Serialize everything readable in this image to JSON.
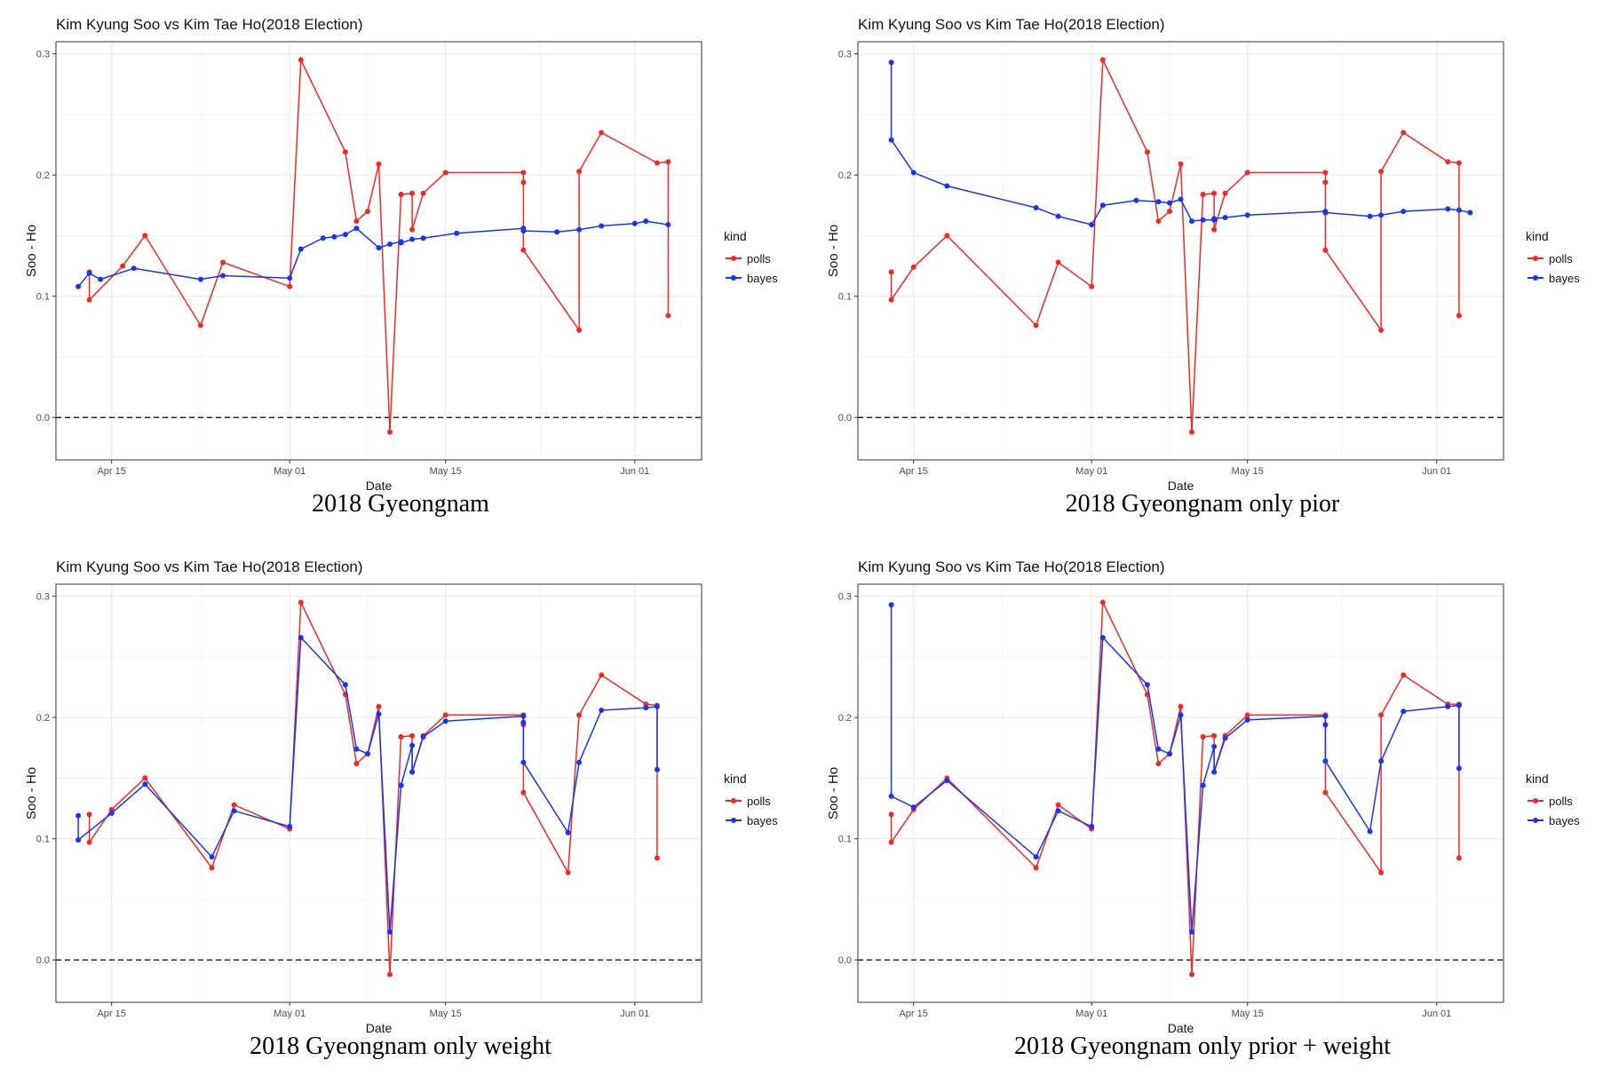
{
  "colors": {
    "polls": "#ee2b22",
    "bayes": "#1635f0",
    "grid": "#ebebeb",
    "zero": "#000000"
  },
  "chart_data": [
    {
      "type": "line",
      "title": "Kim Kyung Soo vs Kim Tae Ho(2018 Election)",
      "caption": "2018 Gyeongnam",
      "xlabel": "Date",
      "ylabel": "Soo - Ho",
      "xlim": [
        "2018-04-10",
        "2018-06-07"
      ],
      "ylim": [
        -0.035,
        0.31
      ],
      "x_ticks": [
        {
          "date": "2018-04-15",
          "label": "Apr 15"
        },
        {
          "date": "2018-05-01",
          "label": "May 01"
        },
        {
          "date": "2018-05-15",
          "label": "May 15"
        },
        {
          "date": "2018-06-01",
          "label": "Jun 01"
        }
      ],
      "y_ticks": [
        0.0,
        0.1,
        0.2,
        0.3
      ],
      "hline": 0,
      "grid": true,
      "legend": {
        "title": "kind",
        "position": "right",
        "entries": [
          "polls",
          "bayes"
        ]
      },
      "series": [
        {
          "name": "polls",
          "x": [
            "2018-04-13",
            "2018-04-13",
            "2018-04-16",
            "2018-04-18",
            "2018-04-23",
            "2018-04-25",
            "2018-05-01",
            "2018-05-02",
            "2018-05-06",
            "2018-05-07",
            "2018-05-08",
            "2018-05-09",
            "2018-05-10",
            "2018-05-11",
            "2018-05-11",
            "2018-05-12",
            "2018-05-12",
            "2018-05-13",
            "2018-05-15",
            "2018-05-22",
            "2018-05-22",
            "2018-05-22",
            "2018-05-27",
            "2018-05-27",
            "2018-05-29",
            "2018-06-03",
            "2018-06-04",
            "2018-06-04"
          ],
          "y": [
            0.12,
            0.097,
            0.125,
            0.15,
            0.076,
            0.128,
            0.108,
            0.295,
            0.219,
            0.162,
            0.17,
            0.209,
            -0.012,
            0.184,
            0.184,
            0.185,
            0.155,
            0.185,
            0.202,
            0.202,
            0.194,
            0.138,
            0.072,
            0.203,
            0.235,
            0.21,
            0.211,
            0.084
          ]
        },
        {
          "name": "bayes",
          "x": [
            "2018-04-12",
            "2018-04-13",
            "2018-04-14",
            "2018-04-17",
            "2018-04-23",
            "2018-04-25",
            "2018-05-01",
            "2018-05-02",
            "2018-05-04",
            "2018-05-05",
            "2018-05-06",
            "2018-05-07",
            "2018-05-09",
            "2018-05-10",
            "2018-05-11",
            "2018-05-11",
            "2018-05-12",
            "2018-05-13",
            "2018-05-16",
            "2018-05-22",
            "2018-05-22",
            "2018-05-25",
            "2018-05-27",
            "2018-05-29",
            "2018-06-01",
            "2018-06-02",
            "2018-06-04"
          ],
          "y": [
            0.108,
            0.119,
            0.114,
            0.123,
            0.114,
            0.117,
            0.115,
            0.139,
            0.148,
            0.149,
            0.151,
            0.156,
            0.14,
            0.143,
            0.145,
            0.144,
            0.147,
            0.148,
            0.152,
            0.156,
            0.154,
            0.153,
            0.155,
            0.158,
            0.16,
            0.162,
            0.159
          ]
        }
      ]
    },
    {
      "type": "line",
      "title": "Kim Kyung Soo vs Kim Tae Ho(2018 Election)",
      "caption": "2018 Gyeongnam only pior",
      "xlabel": "Date",
      "ylabel": "Soo - Ho",
      "xlim": [
        "2018-04-10",
        "2018-06-07"
      ],
      "ylim": [
        -0.035,
        0.31
      ],
      "x_ticks": [
        {
          "date": "2018-04-15",
          "label": "Apr 15"
        },
        {
          "date": "2018-05-01",
          "label": "May 01"
        },
        {
          "date": "2018-05-15",
          "label": "May 15"
        },
        {
          "date": "2018-06-01",
          "label": "Jun 01"
        }
      ],
      "y_ticks": [
        0.0,
        0.1,
        0.2,
        0.3
      ],
      "hline": 0,
      "grid": true,
      "legend": {
        "title": "kind",
        "position": "right",
        "entries": [
          "polls",
          "bayes"
        ]
      },
      "series": [
        {
          "name": "polls",
          "x": [
            "2018-04-13",
            "2018-04-13",
            "2018-04-15",
            "2018-04-18",
            "2018-04-26",
            "2018-04-28",
            "2018-05-01",
            "2018-05-02",
            "2018-05-06",
            "2018-05-07",
            "2018-05-08",
            "2018-05-09",
            "2018-05-10",
            "2018-05-11",
            "2018-05-11",
            "2018-05-12",
            "2018-05-12",
            "2018-05-13",
            "2018-05-15",
            "2018-05-22",
            "2018-05-22",
            "2018-05-22",
            "2018-05-27",
            "2018-05-27",
            "2018-05-29",
            "2018-06-02",
            "2018-06-03",
            "2018-06-03"
          ],
          "y": [
            0.12,
            0.097,
            0.124,
            0.15,
            0.076,
            0.128,
            0.108,
            0.295,
            0.219,
            0.162,
            0.17,
            0.209,
            -0.012,
            0.184,
            0.184,
            0.185,
            0.155,
            0.185,
            0.202,
            0.202,
            0.194,
            0.138,
            0.072,
            0.203,
            0.235,
            0.211,
            0.21,
            0.084
          ]
        },
        {
          "name": "bayes",
          "x": [
            "2018-04-13",
            "2018-04-13",
            "2018-04-15",
            "2018-04-18",
            "2018-04-26",
            "2018-04-28",
            "2018-05-01",
            "2018-05-02",
            "2018-05-05",
            "2018-05-07",
            "2018-05-08",
            "2018-05-09",
            "2018-05-10",
            "2018-05-11",
            "2018-05-12",
            "2018-05-12",
            "2018-05-13",
            "2018-05-15",
            "2018-05-22",
            "2018-05-22",
            "2018-05-26",
            "2018-05-27",
            "2018-05-29",
            "2018-06-02",
            "2018-06-03",
            "2018-06-04"
          ],
          "y": [
            0.293,
            0.229,
            0.202,
            0.191,
            0.173,
            0.166,
            0.159,
            0.175,
            0.179,
            0.178,
            0.177,
            0.18,
            0.162,
            0.163,
            0.163,
            0.164,
            0.165,
            0.167,
            0.17,
            0.169,
            0.166,
            0.167,
            0.17,
            0.172,
            0.171,
            0.169
          ]
        }
      ]
    },
    {
      "type": "line",
      "title": "Kim Kyung Soo vs Kim Tae Ho(2018 Election)",
      "caption": "2018 Gyeongnam only weight",
      "xlabel": "Date",
      "ylabel": "Soo - Ho",
      "xlim": [
        "2018-04-10",
        "2018-06-07"
      ],
      "ylim": [
        -0.035,
        0.31
      ],
      "x_ticks": [
        {
          "date": "2018-04-15",
          "label": "Apr 15"
        },
        {
          "date": "2018-05-01",
          "label": "May 01"
        },
        {
          "date": "2018-05-15",
          "label": "May 15"
        },
        {
          "date": "2018-06-01",
          "label": "Jun 01"
        }
      ],
      "y_ticks": [
        0.0,
        0.1,
        0.2,
        0.3
      ],
      "hline": 0,
      "grid": true,
      "legend": {
        "title": "kind",
        "position": "right",
        "entries": [
          "polls",
          "bayes"
        ]
      },
      "series": [
        {
          "name": "polls",
          "x": [
            "2018-04-13",
            "2018-04-13",
            "2018-04-15",
            "2018-04-18",
            "2018-04-24",
            "2018-04-26",
            "2018-05-01",
            "2018-05-02",
            "2018-05-06",
            "2018-05-07",
            "2018-05-08",
            "2018-05-09",
            "2018-05-10",
            "2018-05-11",
            "2018-05-11",
            "2018-05-12",
            "2018-05-12",
            "2018-05-13",
            "2018-05-15",
            "2018-05-22",
            "2018-05-22",
            "2018-05-22",
            "2018-05-26",
            "2018-05-27",
            "2018-05-29",
            "2018-06-02",
            "2018-06-03",
            "2018-06-03"
          ],
          "y": [
            0.12,
            0.097,
            0.124,
            0.15,
            0.076,
            0.128,
            0.108,
            0.295,
            0.219,
            0.162,
            0.17,
            0.209,
            -0.012,
            0.184,
            0.184,
            0.185,
            0.155,
            0.185,
            0.202,
            0.202,
            0.194,
            0.138,
            0.072,
            0.202,
            0.235,
            0.211,
            0.21,
            0.084
          ]
        },
        {
          "name": "bayes",
          "x": [
            "2018-04-12",
            "2018-04-12",
            "2018-04-15",
            "2018-04-18",
            "2018-04-24",
            "2018-04-26",
            "2018-05-01",
            "2018-05-02",
            "2018-05-06",
            "2018-05-07",
            "2018-05-08",
            "2018-05-09",
            "2018-05-10",
            "2018-05-11",
            "2018-05-11",
            "2018-05-12",
            "2018-05-12",
            "2018-05-13",
            "2018-05-15",
            "2018-05-22",
            "2018-05-22",
            "2018-05-22",
            "2018-05-26",
            "2018-05-27",
            "2018-05-29",
            "2018-06-02",
            "2018-06-03",
            "2018-06-03"
          ],
          "y": [
            0.119,
            0.099,
            0.121,
            0.145,
            0.085,
            0.123,
            0.11,
            0.266,
            0.227,
            0.174,
            0.17,
            0.203,
            0.023,
            0.144,
            0.144,
            0.177,
            0.155,
            0.184,
            0.197,
            0.201,
            0.196,
            0.163,
            0.105,
            0.163,
            0.206,
            0.208,
            0.209,
            0.157
          ]
        }
      ]
    },
    {
      "type": "line",
      "title": "Kim Kyung Soo vs Kim Tae Ho(2018 Election)",
      "caption": "2018 Gyeongnam only prior + weight",
      "xlabel": "Date",
      "ylabel": "Soo - Ho",
      "xlim": [
        "2018-04-10",
        "2018-06-07"
      ],
      "ylim": [
        -0.035,
        0.31
      ],
      "x_ticks": [
        {
          "date": "2018-04-15",
          "label": "Apr 15"
        },
        {
          "date": "2018-05-01",
          "label": "May 01"
        },
        {
          "date": "2018-05-15",
          "label": "May 15"
        },
        {
          "date": "2018-06-01",
          "label": "Jun 01"
        }
      ],
      "y_ticks": [
        0.0,
        0.1,
        0.2,
        0.3
      ],
      "hline": 0,
      "grid": true,
      "legend": {
        "title": "kind",
        "position": "right",
        "entries": [
          "polls",
          "bayes"
        ]
      },
      "series": [
        {
          "name": "polls",
          "x": [
            "2018-04-13",
            "2018-04-13",
            "2018-04-15",
            "2018-04-18",
            "2018-04-26",
            "2018-04-28",
            "2018-05-01",
            "2018-05-02",
            "2018-05-06",
            "2018-05-07",
            "2018-05-08",
            "2018-05-09",
            "2018-05-10",
            "2018-05-11",
            "2018-05-11",
            "2018-05-12",
            "2018-05-12",
            "2018-05-13",
            "2018-05-15",
            "2018-05-22",
            "2018-05-22",
            "2018-05-22",
            "2018-05-27",
            "2018-05-27",
            "2018-05-29",
            "2018-06-02",
            "2018-06-03",
            "2018-06-03"
          ],
          "y": [
            0.12,
            0.097,
            0.124,
            0.15,
            0.076,
            0.128,
            0.108,
            0.295,
            0.219,
            0.162,
            0.17,
            0.209,
            -0.012,
            0.184,
            0.184,
            0.185,
            0.155,
            0.185,
            0.202,
            0.202,
            0.194,
            0.138,
            0.072,
            0.202,
            0.235,
            0.211,
            0.211,
            0.084
          ]
        },
        {
          "name": "bayes",
          "x": [
            "2018-04-13",
            "2018-04-13",
            "2018-04-15",
            "2018-04-18",
            "2018-04-26",
            "2018-04-28",
            "2018-05-01",
            "2018-05-02",
            "2018-05-06",
            "2018-05-07",
            "2018-05-08",
            "2018-05-09",
            "2018-05-10",
            "2018-05-11",
            "2018-05-11",
            "2018-05-12",
            "2018-05-12",
            "2018-05-13",
            "2018-05-15",
            "2018-05-22",
            "2018-05-22",
            "2018-05-22",
            "2018-05-26",
            "2018-05-27",
            "2018-05-29",
            "2018-06-02",
            "2018-06-03",
            "2018-06-03"
          ],
          "y": [
            0.293,
            0.135,
            0.126,
            0.148,
            0.085,
            0.123,
            0.11,
            0.266,
            0.227,
            0.174,
            0.17,
            0.202,
            0.023,
            0.144,
            0.144,
            0.176,
            0.155,
            0.183,
            0.198,
            0.201,
            0.194,
            0.164,
            0.106,
            0.164,
            0.205,
            0.209,
            0.21,
            0.158
          ]
        }
      ]
    }
  ]
}
